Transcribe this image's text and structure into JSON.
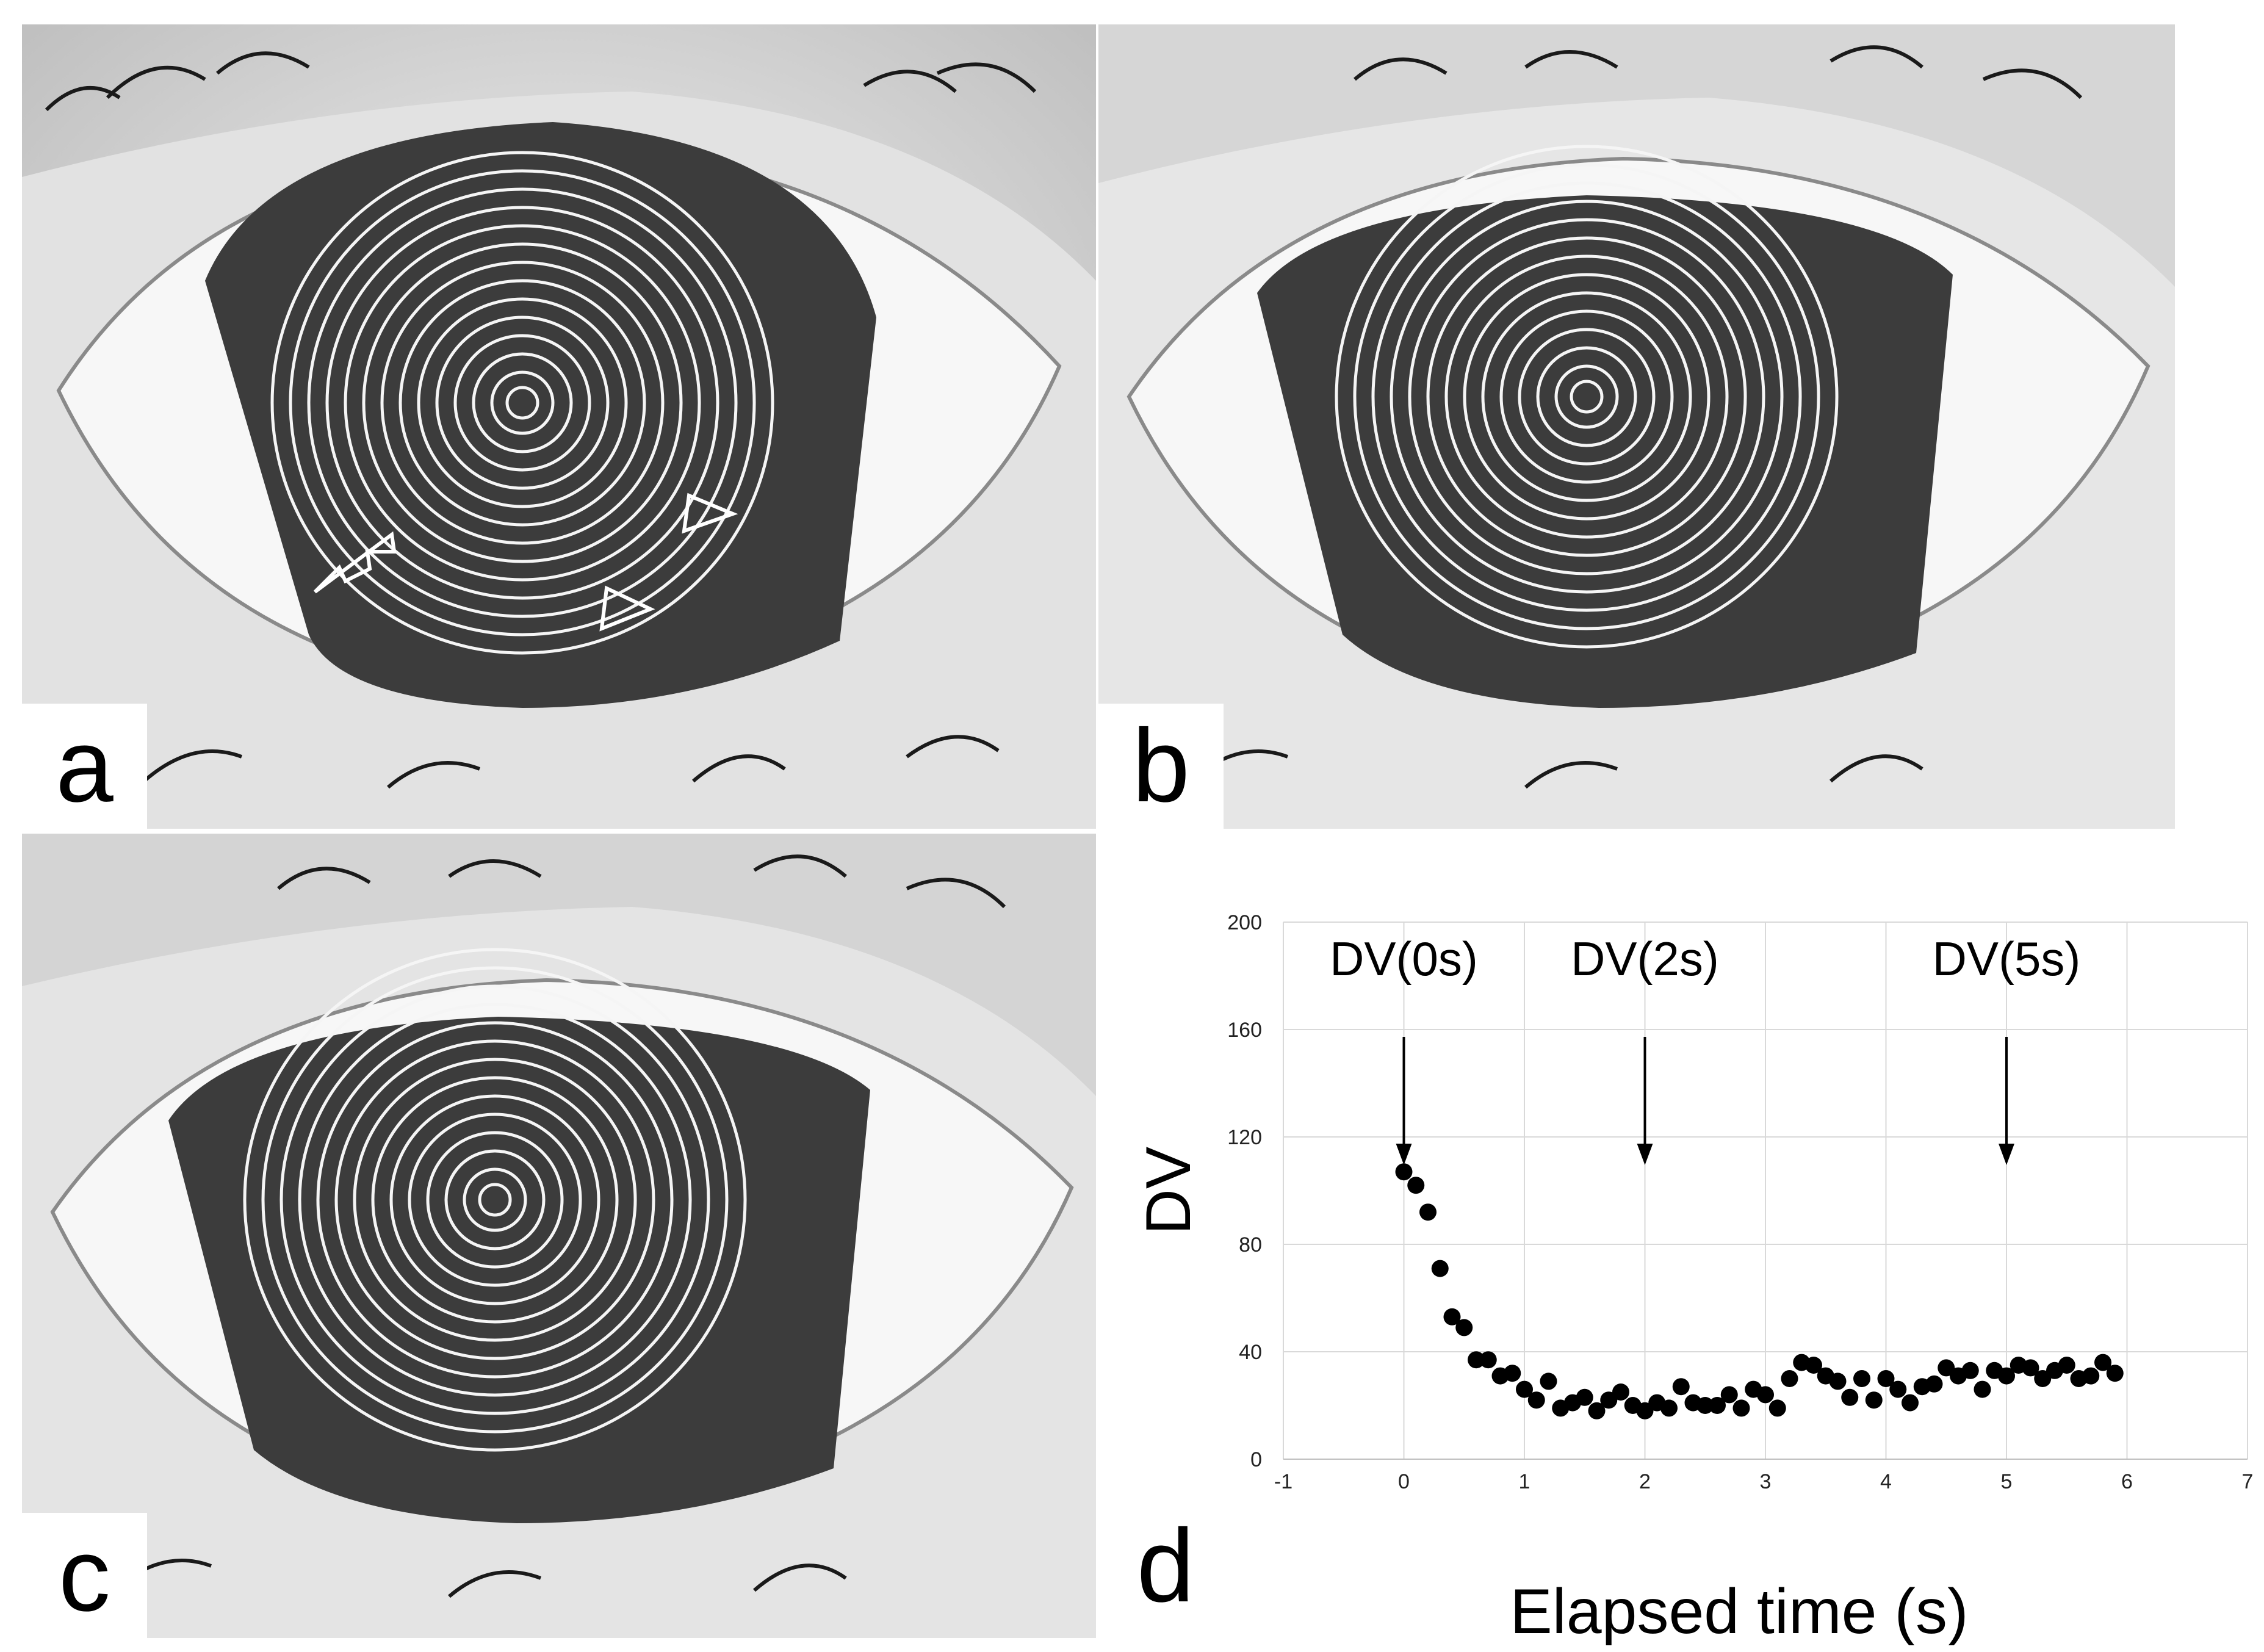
{
  "panels": {
    "a": {
      "label": "a"
    },
    "b": {
      "label": "b"
    },
    "c": {
      "label": "c"
    },
    "d": {
      "label": "d"
    }
  },
  "chart_data": {
    "type": "scatter",
    "title": "",
    "xlabel": "Elapsed time (s)",
    "ylabel": "DV",
    "xlim": [
      -1,
      7
    ],
    "ylim": [
      0,
      200
    ],
    "x_ticks": [
      "-1",
      "0",
      "1",
      "2",
      "3",
      "4",
      "5",
      "6",
      "7"
    ],
    "y_ticks": [
      "0",
      "40",
      "80",
      "120",
      "160",
      "200"
    ],
    "grid": true,
    "annotations": [
      {
        "text": "DV(0s)",
        "x": 0
      },
      {
        "text": "DV(2s)",
        "x": 2
      },
      {
        "text": "DV(5s)",
        "x": 5
      }
    ],
    "series": [
      {
        "x": [
          0.0,
          0.1,
          0.2,
          0.3,
          0.4,
          0.5,
          0.6,
          0.7,
          0.8,
          0.9,
          1.0,
          1.1,
          1.2,
          1.3,
          1.4,
          1.5,
          1.6,
          1.7,
          1.8,
          1.9,
          2.0,
          2.1,
          2.2,
          2.3,
          2.4,
          2.5,
          2.6,
          2.7,
          2.8,
          2.9,
          3.0,
          3.1,
          3.2,
          3.3,
          3.4,
          3.5,
          3.6,
          3.7,
          3.8,
          3.9,
          4.0,
          4.1,
          4.2,
          4.3,
          4.4,
          4.5,
          4.6,
          4.7,
          4.8,
          4.9,
          5.0,
          5.1,
          5.2,
          5.3,
          5.4,
          5.5,
          5.6,
          5.7,
          5.8,
          5.9
        ],
        "y": [
          107,
          102,
          92,
          71,
          53,
          49,
          37,
          37,
          31,
          32,
          26,
          22,
          29,
          19,
          21,
          23,
          18,
          22,
          25,
          20,
          18,
          21,
          19,
          27,
          21,
          20,
          20,
          24,
          19,
          26,
          24,
          19,
          30,
          36,
          35,
          31,
          29,
          23,
          30,
          22,
          30,
          26,
          21,
          27,
          28,
          34,
          31,
          33,
          26,
          33,
          31,
          35,
          34,
          30,
          33,
          35,
          30,
          31,
          36,
          32
        ]
      }
    ]
  }
}
